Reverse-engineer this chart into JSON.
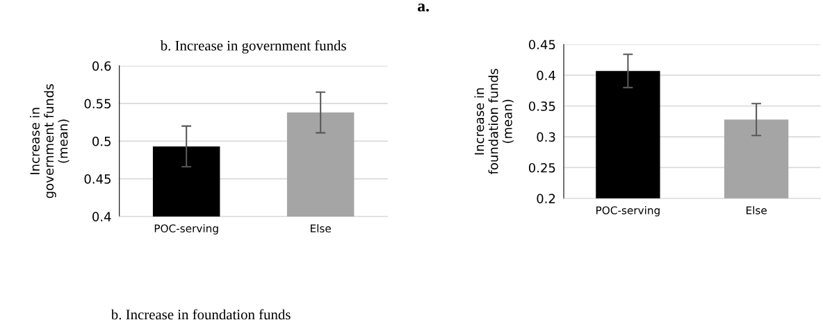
{
  "chart_data": [
    {
      "type": "bar",
      "title": "b. Increase in government funds",
      "ylabel": "Increase in\ngovernment funds\n(mean)",
      "categories": [
        "POC-serving",
        "Else"
      ],
      "values": [
        0.493,
        0.538
      ],
      "colors": [
        "#000000",
        "#a5a5a5"
      ],
      "errors": [
        0.027,
        0.027
      ],
      "ylim": [
        0.4,
        0.6
      ],
      "yticks": [
        0.4,
        0.45,
        0.5,
        0.55,
        0.6
      ],
      "grid": "y"
    },
    {
      "type": "bar",
      "ylabel": "Increase in\nfoundation funds\n(mean)",
      "categories": [
        "POC-serving",
        "Else"
      ],
      "values": [
        0.407,
        0.328
      ],
      "colors": [
        "#000000",
        "#a5a5a5"
      ],
      "errors": [
        0.027,
        0.026
      ],
      "ylim": [
        0.2,
        0.45
      ],
      "yticks": [
        0.2,
        0.25,
        0.3,
        0.35,
        0.4,
        0.45
      ],
      "grid": "y",
      "annotations": [
        "a.",
        "b. Increase in foundation funds"
      ]
    }
  ]
}
